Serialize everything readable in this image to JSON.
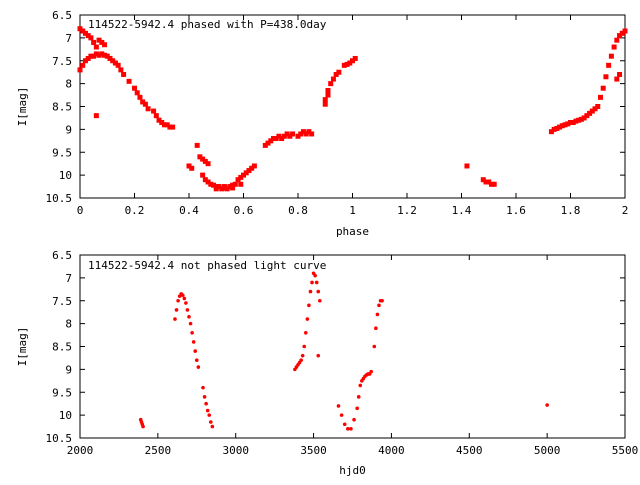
{
  "chart_data": [
    {
      "type": "scatter",
      "title": "114522-5942.4 phased with P=438.0day",
      "xlabel": "phase",
      "ylabel": "I[mag]",
      "xlim": [
        0,
        2
      ],
      "ylim": [
        10.5,
        6.5
      ],
      "y_inverted": true,
      "xticks": [
        0,
        0.2,
        0.4,
        0.6,
        0.8,
        1,
        1.2,
        1.4,
        1.6,
        1.8,
        2
      ],
      "xtick_labels": [
        "0",
        "0.2",
        "0.4",
        "0.6",
        "0.8",
        "1",
        "1.2",
        "1.4",
        "1.6",
        "1.8",
        "2"
      ],
      "yticks": [
        6.5,
        7,
        7.5,
        8,
        8.5,
        9,
        9.5,
        10,
        10.5
      ],
      "ytick_labels": [
        "6.5",
        "7",
        "7.5",
        "8",
        "8.5",
        "9",
        "9.5",
        "10",
        "10.5"
      ],
      "grid": false,
      "marker": "square",
      "color": "#ff0000",
      "series": [
        {
          "x": [
            0.0,
            0.01,
            0.02,
            0.03,
            0.04,
            0.05,
            0.06,
            0.07,
            0.08,
            0.09,
            0.1,
            0.11,
            0.12,
            0.13,
            0.14,
            0.15,
            0.16,
            0.18,
            0.2,
            0.21,
            0.22,
            0.23,
            0.24,
            0.25,
            0.27,
            0.28,
            0.29,
            0.3,
            0.31,
            0.32,
            0.33,
            0.34,
            0.0,
            0.01,
            0.02,
            0.03,
            0.04,
            0.05,
            0.06,
            0.07,
            0.08,
            0.09,
            0.06,
            0.4,
            0.41,
            0.43,
            0.44,
            0.45,
            0.46,
            0.47,
            0.45,
            0.46,
            0.47,
            0.48,
            0.49,
            0.5,
            0.51,
            0.52,
            0.53,
            0.54,
            0.55,
            0.56,
            0.57,
            0.58,
            0.59,
            0.6,
            0.61,
            0.62,
            0.63,
            0.64,
            0.5,
            0.53,
            0.56,
            0.59,
            0.68,
            0.69,
            0.7,
            0.71,
            0.72,
            0.73,
            0.74,
            0.75,
            0.76,
            0.77,
            0.78,
            0.8,
            0.81,
            0.82,
            0.83,
            0.84,
            0.85,
            0.9,
            0.9,
            0.91,
            0.91,
            0.92,
            0.93,
            0.94,
            0.95,
            0.97,
            0.98,
            0.99,
            1.0,
            1.01,
            1.42,
            1.48,
            1.49,
            1.5,
            1.51,
            1.52,
            1.73,
            1.74,
            1.75,
            1.76,
            1.77,
            1.78,
            1.79,
            1.8,
            1.81,
            1.82,
            1.83,
            1.84,
            1.85,
            1.86,
            1.87,
            1.88,
            1.89,
            1.9,
            1.91,
            1.92,
            1.93,
            1.94,
            1.95,
            1.96,
            1.97,
            1.98,
            1.99,
            2.0,
            1.97,
            1.98
          ],
          "y": [
            7.7,
            7.6,
            7.5,
            7.45,
            7.4,
            7.4,
            7.35,
            7.38,
            7.35,
            7.38,
            7.4,
            7.45,
            7.5,
            7.55,
            7.6,
            7.7,
            7.8,
            7.95,
            8.1,
            8.2,
            8.3,
            8.4,
            8.45,
            8.55,
            8.6,
            8.7,
            8.8,
            8.85,
            8.9,
            8.9,
            8.95,
            8.95,
            6.8,
            6.85,
            6.9,
            6.95,
            7.0,
            7.1,
            7.2,
            7.05,
            7.1,
            7.15,
            8.7,
            9.8,
            9.85,
            9.35,
            9.6,
            9.65,
            9.7,
            9.75,
            10.0,
            10.1,
            10.15,
            10.2,
            10.22,
            10.25,
            10.25,
            10.3,
            10.28,
            10.3,
            10.25,
            10.22,
            10.2,
            10.1,
            10.05,
            10.0,
            9.95,
            9.9,
            9.85,
            9.8,
            10.3,
            10.25,
            10.28,
            10.2,
            9.35,
            9.3,
            9.25,
            9.2,
            9.2,
            9.15,
            9.2,
            9.15,
            9.1,
            9.15,
            9.1,
            9.15,
            9.1,
            9.05,
            9.1,
            9.05,
            9.1,
            8.45,
            8.35,
            8.25,
            8.15,
            8.0,
            7.9,
            7.8,
            7.75,
            7.6,
            7.58,
            7.55,
            7.5,
            7.45,
            9.8,
            10.1,
            10.15,
            10.15,
            10.2,
            10.2,
            9.05,
            9.0,
            8.98,
            8.95,
            8.92,
            8.9,
            8.88,
            8.85,
            8.85,
            8.82,
            8.8,
            8.78,
            8.75,
            8.7,
            8.65,
            8.6,
            8.55,
            8.5,
            8.3,
            8.1,
            7.85,
            7.6,
            7.4,
            7.2,
            7.05,
            6.95,
            6.9,
            6.85,
            7.9,
            7.8
          ]
        }
      ]
    },
    {
      "type": "scatter",
      "title": "114522-5942.4 not phased light curve",
      "xlabel": "hjd0",
      "ylabel": "I[mag]",
      "xlim": [
        2000,
        5500
      ],
      "ylim": [
        10.5,
        6.5
      ],
      "y_inverted": true,
      "xticks": [
        2000,
        2500,
        3000,
        3500,
        4000,
        4500,
        5000,
        5500
      ],
      "xtick_labels": [
        "2000",
        "2500",
        "3000",
        "3500",
        "4000",
        "4500",
        "5000",
        "5500"
      ],
      "yticks": [
        6.5,
        7,
        7.5,
        8,
        8.5,
        9,
        9.5,
        10,
        10.5
      ],
      "ytick_labels": [
        "6.5",
        "7",
        "7.5",
        "8",
        "8.5",
        "9",
        "9.5",
        "10",
        "10.5"
      ],
      "grid": false,
      "marker": "circle",
      "color": "#ff0000",
      "series": [
        {
          "x": [
            2390,
            2395,
            2400,
            2405,
            2610,
            2620,
            2630,
            2640,
            2650,
            2660,
            2670,
            2680,
            2690,
            2700,
            2710,
            2720,
            2730,
            2740,
            2750,
            2760,
            2790,
            2800,
            2810,
            2820,
            2830,
            2840,
            2850,
            3380,
            3390,
            3400,
            3410,
            3420,
            3430,
            3440,
            3450,
            3460,
            3470,
            3480,
            3490,
            3500,
            3510,
            3520,
            3530,
            3540,
            3530,
            3660,
            3680,
            3700,
            3720,
            3740,
            3760,
            3780,
            3790,
            3800,
            3810,
            3820,
            3830,
            3840,
            3850,
            3860,
            3870,
            3890,
            3900,
            3910,
            3920,
            3930,
            3940,
            5000
          ],
          "y": [
            10.1,
            10.15,
            10.2,
            10.25,
            7.9,
            7.7,
            7.5,
            7.4,
            7.35,
            7.38,
            7.45,
            7.55,
            7.7,
            7.85,
            8.0,
            8.2,
            8.4,
            8.6,
            8.8,
            8.95,
            9.4,
            9.6,
            9.75,
            9.9,
            10.0,
            10.15,
            10.25,
            9.0,
            8.95,
            8.9,
            8.85,
            8.8,
            8.7,
            8.5,
            8.2,
            7.9,
            7.6,
            7.3,
            7.1,
            6.9,
            6.95,
            7.1,
            7.3,
            7.5,
            8.7,
            9.8,
            10.0,
            10.2,
            10.3,
            10.3,
            10.1,
            9.85,
            9.6,
            9.35,
            9.25,
            9.2,
            9.15,
            9.12,
            9.1,
            9.1,
            9.05,
            8.5,
            8.1,
            7.8,
            7.6,
            7.5,
            7.5,
            9.78
          ]
        }
      ]
    }
  ]
}
